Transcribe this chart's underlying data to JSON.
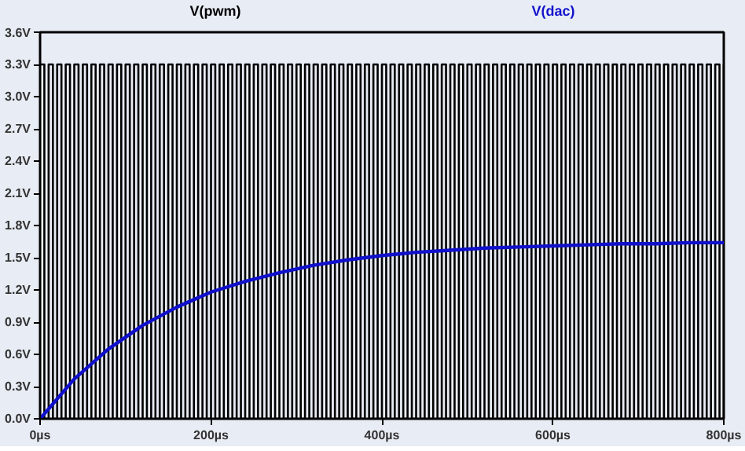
{
  "chart_data": {
    "type": "line",
    "xlim": [
      0,
      800
    ],
    "ylim": [
      0,
      3.6
    ],
    "xticks": [
      {
        "value": 0,
        "label": "0µs"
      },
      {
        "value": 200,
        "label": "200µs"
      },
      {
        "value": 400,
        "label": "400µs"
      },
      {
        "value": 600,
        "label": "600µs"
      },
      {
        "value": 800,
        "label": "800µs"
      }
    ],
    "yticks": [
      {
        "value": 0,
        "label": "0.0V"
      },
      {
        "value": 0.3,
        "label": "0.3V"
      },
      {
        "value": 0.6,
        "label": "0.6V"
      },
      {
        "value": 0.9,
        "label": "0.9V"
      },
      {
        "value": 1.2,
        "label": "1.2V"
      },
      {
        "value": 1.5,
        "label": "1.5V"
      },
      {
        "value": 1.8,
        "label": "1.8V"
      },
      {
        "value": 2.1,
        "label": "2.1V"
      },
      {
        "value": 2.4,
        "label": "2.4V"
      },
      {
        "value": 2.7,
        "label": "2.7V"
      },
      {
        "value": 3.0,
        "label": "3.0V"
      },
      {
        "value": 3.3,
        "label": "3.3V"
      },
      {
        "value": 3.6,
        "label": "3.6V"
      }
    ],
    "grid": false,
    "marker": "none",
    "series": [
      {
        "name": "V(pwm)",
        "type": "step",
        "color": "#000000",
        "x": [
          0,
          5,
          10,
          15,
          20,
          25,
          30,
          35,
          40,
          45,
          50,
          55,
          60,
          65,
          70,
          75,
          80,
          85,
          90,
          95,
          100,
          105,
          110,
          115,
          120,
          125,
          130,
          135,
          140,
          145,
          150,
          155,
          160,
          165,
          170,
          175,
          180,
          185,
          190,
          195,
          200,
          205,
          210,
          215,
          220,
          225,
          230,
          235,
          240,
          245,
          250,
          255,
          260,
          265,
          270,
          275,
          280,
          285,
          290,
          295,
          300,
          305,
          310,
          315,
          320,
          325,
          330,
          335,
          340,
          345,
          350,
          355,
          360,
          365,
          370,
          375,
          380,
          385,
          390,
          395,
          400,
          405,
          410,
          415,
          420,
          425,
          430,
          435,
          440,
          445,
          450,
          455,
          460,
          465,
          470,
          475,
          480,
          485,
          490,
          495,
          500,
          505,
          510,
          515,
          520,
          525,
          530,
          535,
          540,
          545,
          550,
          555,
          560,
          565,
          570,
          575,
          580,
          585,
          590,
          595,
          600,
          605,
          610,
          615,
          620,
          625,
          630,
          635,
          640,
          645,
          650,
          655,
          660,
          665,
          670,
          675,
          680,
          685,
          690,
          695,
          700,
          705,
          710,
          715,
          720,
          725,
          730,
          735,
          740,
          745,
          750,
          755,
          760,
          765,
          770,
          775,
          780,
          785,
          790,
          795,
          800
        ],
        "values": [
          3.3,
          0,
          3.3,
          0,
          3.3,
          0,
          3.3,
          0,
          3.3,
          0,
          3.3,
          0,
          3.3,
          0,
          3.3,
          0,
          3.3,
          0,
          3.3,
          0,
          3.3,
          0,
          3.3,
          0,
          3.3,
          0,
          3.3,
          0,
          3.3,
          0,
          3.3,
          0,
          3.3,
          0,
          3.3,
          0,
          3.3,
          0,
          3.3,
          0,
          3.3,
          0,
          3.3,
          0,
          3.3,
          0,
          3.3,
          0,
          3.3,
          0,
          3.3,
          0,
          3.3,
          0,
          3.3,
          0,
          3.3,
          0,
          3.3,
          0,
          3.3,
          0,
          3.3,
          0,
          3.3,
          0,
          3.3,
          0,
          3.3,
          0,
          3.3,
          0,
          3.3,
          0,
          3.3,
          0,
          3.3,
          0,
          3.3,
          0,
          3.3,
          0,
          3.3,
          0,
          3.3,
          0,
          3.3,
          0,
          3.3,
          0,
          3.3,
          0,
          3.3,
          0,
          3.3,
          0,
          3.3,
          0,
          3.3,
          0,
          3.3,
          0,
          3.3,
          0,
          3.3,
          0,
          3.3,
          0,
          3.3,
          0,
          3.3,
          0,
          3.3,
          0,
          3.3,
          0,
          3.3,
          0,
          3.3,
          0,
          3.3,
          0,
          3.3,
          0,
          3.3,
          0,
          3.3,
          0,
          3.3,
          0,
          3.3,
          0,
          3.3,
          0,
          3.3,
          0,
          3.3,
          0,
          3.3,
          0,
          3.3,
          0,
          3.3,
          0,
          3.3,
          0,
          3.3,
          0,
          3.3,
          0,
          3.3,
          0,
          3.3,
          0,
          3.3,
          0,
          3.3,
          0,
          3.3,
          0,
          3.3
        ]
      },
      {
        "name": "V(dac)",
        "color": "#1010cc",
        "x": [
          0,
          40,
          80,
          120,
          160,
          200,
          240,
          280,
          320,
          360,
          400,
          440,
          480,
          520,
          560,
          600,
          640,
          680,
          720,
          760,
          800
        ],
        "values": [
          0,
          0.37,
          0.65,
          0.87,
          1.04,
          1.18,
          1.28,
          1.36,
          1.43,
          1.48,
          1.52,
          1.55,
          1.57,
          1.59,
          1.6,
          1.61,
          1.62,
          1.63,
          1.63,
          1.64,
          1.64
        ]
      }
    ]
  }
}
